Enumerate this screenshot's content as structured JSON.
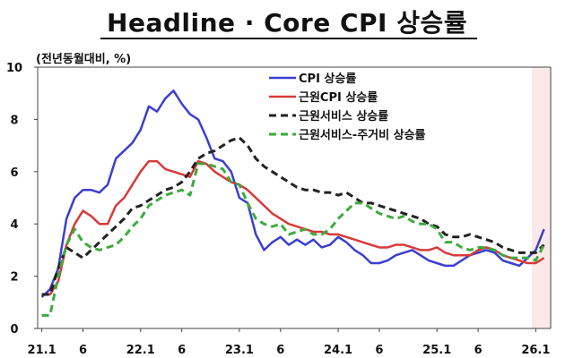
{
  "title": "Headline · Core  CPI 상승률",
  "unit_label": "(전년동월대비, %)",
  "chart_data": {
    "type": "line",
    "x_tick_labels": [
      "21.1",
      "6",
      "22.1",
      "6",
      "23.1",
      "6",
      "24.1",
      "6",
      "25.1",
      "6",
      "26.1"
    ],
    "x_tick_months": [
      0,
      5,
      12,
      17,
      24,
      29,
      36,
      41,
      48,
      53,
      60
    ],
    "x_start": "2021-01",
    "x_end": "2026-02",
    "ylim": [
      0,
      10
    ],
    "y_ticks": [
      0,
      2,
      4,
      6,
      8,
      10
    ],
    "highlight_band": {
      "from": "2026-01",
      "to": "2026-02",
      "color": "#fbe9e9"
    },
    "legend_position": "top-center",
    "series": [
      {
        "name": "CPI 상승률",
        "color": "#3b3fcf",
        "dash": "solid",
        "values": [
          1.2,
          1.5,
          2.3,
          4.2,
          5.0,
          5.3,
          5.3,
          5.2,
          5.5,
          6.5,
          6.8,
          7.1,
          7.6,
          8.5,
          8.3,
          8.8,
          9.1,
          8.6,
          8.2,
          8.0,
          7.3,
          6.5,
          6.4,
          6.0,
          5.0,
          4.8,
          3.6,
          3.0,
          3.3,
          3.5,
          3.2,
          3.4,
          3.2,
          3.4,
          3.1,
          3.2,
          3.5,
          3.3,
          3.0,
          2.8,
          2.5,
          2.5,
          2.6,
          2.8,
          2.9,
          3.0,
          2.8,
          2.6,
          2.5,
          2.4,
          2.4,
          2.6,
          2.8,
          2.9,
          3.0,
          2.9,
          2.6,
          2.5,
          2.4,
          2.7,
          3.0,
          3.8
        ]
      },
      {
        "name": "근원CPI 상승률",
        "color": "#d83a3a",
        "dash": "solid",
        "values": [
          1.3,
          1.3,
          1.8,
          3.2,
          4.0,
          4.5,
          4.3,
          4.0,
          4.0,
          4.7,
          5.0,
          5.5,
          6.0,
          6.4,
          6.4,
          6.1,
          6.0,
          5.9,
          5.8,
          6.4,
          6.3,
          6.0,
          5.8,
          5.6,
          5.5,
          5.3,
          5.0,
          4.7,
          4.4,
          4.2,
          4.0,
          3.9,
          3.8,
          3.7,
          3.7,
          3.6,
          3.6,
          3.5,
          3.4,
          3.3,
          3.2,
          3.1,
          3.1,
          3.2,
          3.2,
          3.1,
          3.0,
          3.0,
          3.1,
          2.9,
          2.8,
          2.8,
          2.8,
          3.0,
          3.1,
          3.0,
          2.8,
          2.7,
          2.6,
          2.5,
          2.5,
          2.7
        ]
      },
      {
        "name": "근원서비스 상승률",
        "color": "#222222",
        "dash": "dash",
        "values": [
          1.3,
          1.3,
          2.3,
          3.1,
          2.9,
          2.7,
          3.0,
          3.3,
          3.6,
          3.9,
          4.2,
          4.6,
          4.7,
          4.9,
          5.1,
          5.3,
          5.4,
          5.6,
          6.0,
          6.5,
          6.7,
          6.8,
          7.0,
          7.2,
          7.3,
          7.0,
          6.5,
          6.2,
          6.0,
          5.8,
          5.6,
          5.4,
          5.3,
          5.3,
          5.2,
          5.2,
          5.1,
          5.2,
          5.0,
          4.8,
          4.8,
          4.7,
          4.6,
          4.5,
          4.4,
          4.3,
          4.2,
          4.0,
          3.9,
          3.6,
          3.5,
          3.5,
          3.6,
          3.5,
          3.4,
          3.3,
          3.1,
          3.0,
          2.9,
          2.9,
          2.9,
          3.2
        ]
      },
      {
        "name": "근원서비스-주거비 상승률",
        "color": "#3dab3d",
        "dash": "dash",
        "values": [
          0.5,
          0.5,
          2.0,
          3.2,
          3.8,
          3.3,
          3.1,
          3.0,
          3.1,
          3.2,
          3.5,
          3.9,
          4.2,
          4.7,
          4.9,
          5.1,
          5.2,
          5.3,
          5.1,
          6.3,
          6.3,
          6.2,
          6.1,
          5.6,
          5.5,
          4.8,
          4.2,
          4.0,
          3.9,
          4.0,
          3.6,
          3.7,
          3.8,
          3.6,
          3.6,
          3.8,
          4.2,
          4.5,
          4.8,
          4.8,
          4.6,
          4.4,
          4.3,
          4.2,
          4.3,
          4.1,
          4.0,
          4.0,
          3.8,
          3.3,
          3.3,
          3.1,
          3.0,
          3.1,
          3.1,
          3.0,
          2.8,
          2.7,
          2.7,
          2.7,
          2.6,
          3.2
        ]
      }
    ]
  }
}
